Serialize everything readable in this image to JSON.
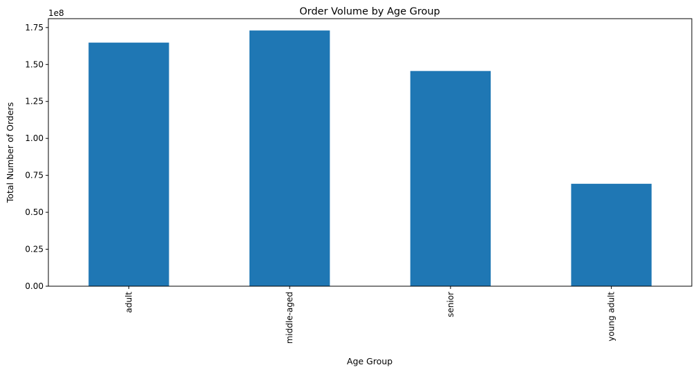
{
  "chart_data": {
    "type": "bar",
    "title": "Order Volume by Age Group",
    "xlabel": "Age Group",
    "ylabel": "Total Number of Orders",
    "categories": [
      "adult",
      "middle-aged",
      "senior",
      "young adult"
    ],
    "values": [
      164800000,
      173000000,
      145600000,
      69300000
    ],
    "ylim": [
      0,
      181000000
    ],
    "yticks": [
      0,
      25000000,
      50000000,
      75000000,
      100000000,
      125000000,
      150000000,
      175000000
    ],
    "ytick_labels": [
      "0.00",
      "0.25",
      "0.50",
      "0.75",
      "1.00",
      "1.25",
      "1.50",
      "1.75"
    ],
    "y_offset_label": "1e8",
    "bar_color": "#1f77b4",
    "grid": false,
    "legend": false
  }
}
